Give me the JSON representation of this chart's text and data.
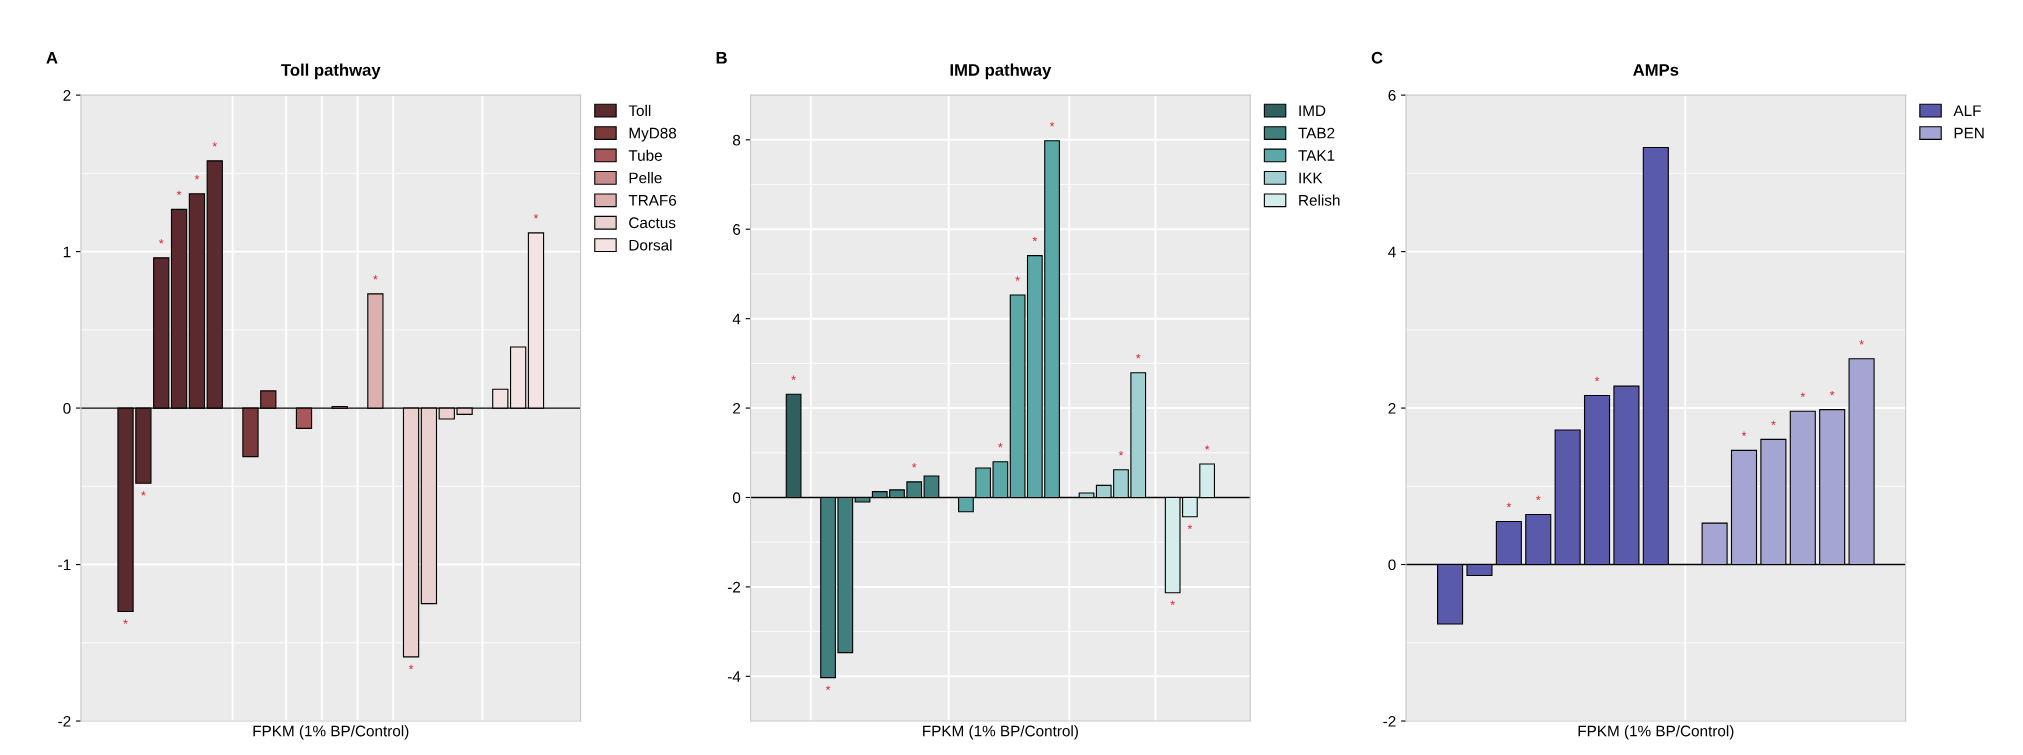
{
  "chart_data": [
    {
      "type": "bar",
      "title": "Toll pathway",
      "xlabel": "FPKM (1% BP/Control)",
      "annotations": [
        "A"
      ],
      "ylim": [
        -2,
        2
      ],
      "yticks": [
        -2,
        -1,
        0,
        1,
        2
      ],
      "grid": true,
      "legend": "right",
      "categories": [
        null,
        null,
        null,
        null,
        null,
        null,
        null,
        null,
        null,
        null,
        null,
        null,
        null,
        null,
        null,
        null,
        null,
        null,
        null,
        null,
        null,
        null,
        null,
        null,
        null,
        null,
        null,
        null
      ],
      "series": [
        {
          "name": "Toll",
          "color": "#5a2a2e",
          "values": [
            null,
            null,
            -1.3,
            -0.48,
            0.96,
            1.27,
            1.37,
            1.58,
            null,
            null,
            null,
            null,
            null,
            null,
            null,
            null,
            null,
            null,
            null,
            null,
            null,
            null,
            null,
            null,
            null,
            null,
            null,
            null
          ],
          "value_labels": [
            null,
            null,
            "*",
            "*",
            "*",
            "*",
            "*",
            "*",
            null,
            null,
            null,
            null,
            null,
            null,
            null,
            null,
            null,
            null,
            null,
            null,
            null,
            null,
            null,
            null,
            null,
            null,
            null,
            null
          ]
        },
        {
          "name": "MyD88",
          "color": "#7a3a3c",
          "values": [
            null,
            null,
            null,
            null,
            null,
            null,
            null,
            null,
            null,
            -0.31,
            0.11,
            null,
            null,
            null,
            null,
            null,
            null,
            null,
            null,
            null,
            null,
            null,
            null,
            null,
            null,
            null,
            null,
            null
          ]
        },
        {
          "name": "Tube",
          "color": "#a8575a",
          "values": [
            null,
            null,
            null,
            null,
            null,
            null,
            null,
            null,
            null,
            null,
            null,
            null,
            -0.13,
            null,
            null,
            null,
            null,
            null,
            null,
            null,
            null,
            null,
            null,
            null,
            null,
            null,
            null,
            null
          ]
        },
        {
          "name": "Pelle",
          "color": "#c98a8a",
          "values": [
            null,
            null,
            null,
            null,
            null,
            null,
            null,
            null,
            null,
            null,
            null,
            null,
            null,
            null,
            0.01,
            null,
            null,
            null,
            null,
            null,
            null,
            null,
            null,
            null,
            null,
            null,
            null,
            null
          ]
        },
        {
          "name": "TRAF6",
          "color": "#ddb0b0",
          "values": [
            null,
            null,
            null,
            null,
            null,
            null,
            null,
            null,
            null,
            null,
            null,
            null,
            null,
            null,
            null,
            null,
            0.73,
            null,
            null,
            null,
            null,
            null,
            null,
            null,
            null,
            null,
            null,
            null
          ],
          "value_labels": [
            null,
            null,
            null,
            null,
            null,
            null,
            null,
            null,
            null,
            null,
            null,
            null,
            null,
            null,
            null,
            null,
            "*",
            null,
            null,
            null,
            null,
            null,
            null,
            null,
            null,
            null,
            null,
            null
          ]
        },
        {
          "name": "Cactus",
          "color": "#ebd0d0",
          "values": [
            null,
            null,
            null,
            null,
            null,
            null,
            null,
            null,
            null,
            null,
            null,
            null,
            null,
            null,
            null,
            null,
            null,
            null,
            -1.59,
            -1.25,
            -0.07,
            -0.04,
            null,
            null,
            null,
            null,
            null,
            null
          ],
          "value_labels": [
            null,
            null,
            null,
            null,
            null,
            null,
            null,
            null,
            null,
            null,
            null,
            null,
            null,
            null,
            null,
            null,
            null,
            null,
            "*",
            null,
            null,
            null,
            null,
            null,
            null,
            null,
            null,
            null
          ]
        },
        {
          "name": "Dorsal",
          "color": "#f3e3e3",
          "values": [
            null,
            null,
            null,
            null,
            null,
            null,
            null,
            null,
            null,
            null,
            null,
            null,
            null,
            null,
            null,
            null,
            null,
            null,
            null,
            null,
            null,
            null,
            null,
            0.12,
            0.39,
            1.12,
            null,
            null
          ],
          "value_labels": [
            null,
            null,
            null,
            null,
            null,
            null,
            null,
            null,
            null,
            null,
            null,
            null,
            null,
            null,
            null,
            null,
            null,
            null,
            null,
            null,
            null,
            null,
            null,
            null,
            null,
            "*",
            null,
            null
          ]
        }
      ]
    },
    {
      "type": "bar",
      "title": "IMD pathway",
      "xlabel": "FPKM (1% BP/Control)",
      "annotations": [
        "B"
      ],
      "ylim": [
        -5,
        9
      ],
      "yticks": [
        -4,
        -2,
        0,
        2,
        4,
        6,
        8
      ],
      "grid": true,
      "legend": "right",
      "categories": [
        null,
        null,
        null,
        null,
        null,
        null,
        null,
        null,
        null,
        null,
        null,
        null,
        null,
        null,
        null,
        null,
        null,
        null,
        null,
        null,
        null,
        null,
        null,
        null,
        null,
        null,
        null,
        null,
        null
      ],
      "series": [
        {
          "name": "IMD",
          "color": "#2f5f5f",
          "values": [
            null,
            null,
            2.31,
            null,
            null,
            null,
            null,
            null,
            null,
            null,
            null,
            null,
            null,
            null,
            null,
            null,
            null,
            null,
            null,
            null,
            null,
            null,
            null,
            null,
            null,
            null,
            null,
            null,
            null
          ],
          "value_labels": [
            null,
            null,
            "*",
            null,
            null,
            null,
            null,
            null,
            null,
            null,
            null,
            null,
            null,
            null,
            null,
            null,
            null,
            null,
            null,
            null,
            null,
            null,
            null,
            null,
            null,
            null,
            null,
            null,
            null
          ]
        },
        {
          "name": "TAB2",
          "color": "#3f7f7e",
          "values": [
            null,
            null,
            null,
            null,
            -4.03,
            -3.47,
            -0.1,
            0.13,
            0.17,
            0.35,
            0.48,
            null,
            null,
            null,
            null,
            null,
            null,
            null,
            null,
            null,
            null,
            null,
            null,
            null,
            null,
            null,
            null,
            null,
            null
          ],
          "value_labels": [
            null,
            null,
            null,
            null,
            "*",
            null,
            null,
            null,
            null,
            "*",
            null,
            null,
            null,
            null,
            null,
            null,
            null,
            null,
            null,
            null,
            null,
            null,
            null,
            null,
            null,
            null,
            null,
            null,
            null
          ]
        },
        {
          "name": "TAK1",
          "color": "#5aa9a8",
          "values": [
            null,
            null,
            null,
            null,
            null,
            null,
            null,
            null,
            null,
            null,
            null,
            null,
            -0.32,
            0.66,
            0.8,
            4.53,
            5.41,
            7.98,
            null,
            null,
            null,
            null,
            null,
            null,
            null,
            null,
            null,
            null,
            null
          ],
          "value_labels": [
            null,
            null,
            null,
            null,
            null,
            null,
            null,
            null,
            null,
            null,
            null,
            null,
            null,
            null,
            "*",
            "*",
            "*",
            "*",
            null,
            null,
            null,
            null,
            null,
            null,
            null,
            null,
            null,
            null,
            null
          ]
        },
        {
          "name": "IKK",
          "color": "#9fcfd0",
          "values": [
            null,
            null,
            null,
            null,
            null,
            null,
            null,
            null,
            null,
            null,
            null,
            null,
            null,
            null,
            null,
            null,
            null,
            null,
            null,
            0.1,
            0.27,
            0.62,
            2.79,
            null,
            null,
            null,
            null,
            null,
            null
          ],
          "value_labels": [
            null,
            null,
            null,
            null,
            null,
            null,
            null,
            null,
            null,
            null,
            null,
            null,
            null,
            null,
            null,
            null,
            null,
            null,
            null,
            null,
            null,
            "*",
            "*",
            null,
            null,
            null,
            null,
            null,
            null
          ]
        },
        {
          "name": "Relish",
          "color": "#d3ecec",
          "values": [
            null,
            null,
            null,
            null,
            null,
            null,
            null,
            null,
            null,
            null,
            null,
            null,
            null,
            null,
            null,
            null,
            null,
            null,
            null,
            null,
            null,
            null,
            null,
            null,
            -2.13,
            -0.43,
            0.75,
            null,
            null
          ],
          "value_labels": [
            null,
            null,
            null,
            null,
            null,
            null,
            null,
            null,
            null,
            null,
            null,
            null,
            null,
            null,
            null,
            null,
            null,
            null,
            null,
            null,
            null,
            null,
            null,
            null,
            "*",
            "*",
            "*",
            null,
            null
          ]
        }
      ]
    },
    {
      "type": "bar",
      "title": "AMPs",
      "xlabel": "FPKM (1% BP/Control)",
      "annotations": [
        "C"
      ],
      "ylim": [
        -2,
        6
      ],
      "yticks": [
        -2,
        0,
        2,
        4,
        6
      ],
      "grid": true,
      "legend": "right",
      "categories": [
        null,
        null,
        null,
        null,
        null,
        null,
        null,
        null,
        null,
        null,
        null,
        null,
        null,
        null,
        null,
        null,
        null
      ],
      "series": [
        {
          "name": "ALF",
          "color": "#5a5aad",
          "values": [
            null,
            -0.76,
            -0.14,
            0.55,
            0.64,
            1.72,
            2.16,
            2.28,
            5.33,
            null,
            null,
            null,
            null,
            null,
            null,
            null,
            null
          ],
          "value_labels": [
            null,
            null,
            null,
            "*",
            "*",
            null,
            "*",
            null,
            null,
            null,
            null,
            null,
            null,
            null,
            null,
            null,
            null
          ]
        },
        {
          "name": "PEN",
          "color": "#a5a5d3",
          "values": [
            null,
            null,
            null,
            null,
            null,
            null,
            null,
            null,
            null,
            null,
            0.53,
            1.46,
            1.6,
            1.96,
            1.98,
            2.63,
            null
          ],
          "value_labels": [
            null,
            null,
            null,
            null,
            null,
            null,
            null,
            null,
            null,
            null,
            null,
            "*",
            "*",
            "*",
            "*",
            "*",
            null
          ]
        }
      ]
    }
  ]
}
